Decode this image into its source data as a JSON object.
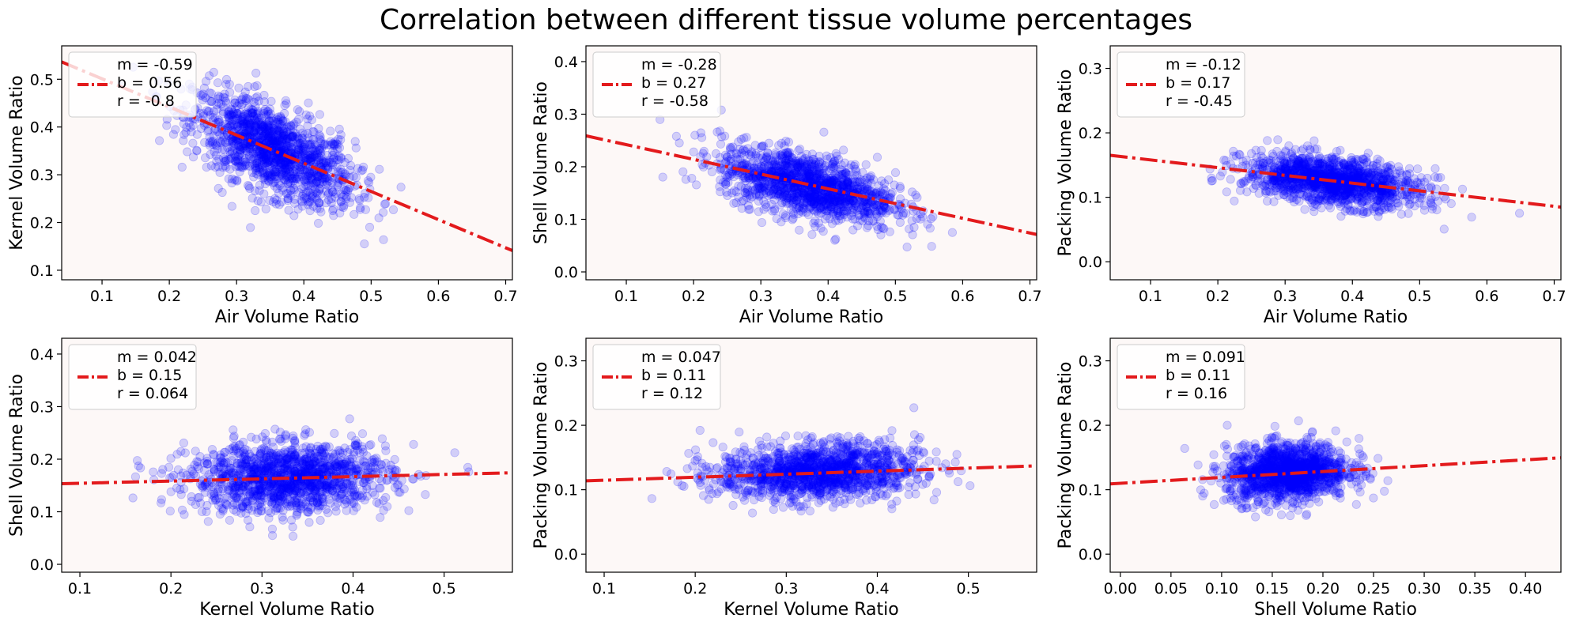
{
  "title": "Correlation between different tissue volume percentages",
  "colors": {
    "points": "#0000ff",
    "fit_line": "#e31a1c",
    "panel_bg": "#fdf8f7",
    "legend_bg": "#ffffff"
  },
  "chart_data": [
    {
      "type": "scatter",
      "xlabel": "Air Volume Ratio",
      "ylabel": "Kernel Volume Ratio",
      "xlim": [
        0.04,
        0.71
      ],
      "ylim": [
        0.08,
        0.57
      ],
      "xticks": [
        "0.1",
        "0.2",
        "0.3",
        "0.4",
        "0.5",
        "0.6",
        "0.7"
      ],
      "yticks": [
        "0.1",
        "0.2",
        "0.3",
        "0.4",
        "0.5"
      ],
      "cloud": {
        "cx": 0.355,
        "cy": 0.35,
        "sx": 0.06,
        "sy": 0.045,
        "slope": -0.59
      },
      "fit": {
        "m": -0.59,
        "b": 0.56
      },
      "legend": [
        "m = -0.59",
        "b = 0.56",
        "r = -0.8"
      ]
    },
    {
      "type": "scatter",
      "xlabel": "Air Volume Ratio",
      "ylabel": "Shell Volume Ratio",
      "xlim": [
        0.04,
        0.71
      ],
      "ylim": [
        -0.015,
        0.43
      ],
      "xticks": [
        "0.1",
        "0.2",
        "0.3",
        "0.4",
        "0.5",
        "0.6",
        "0.7"
      ],
      "yticks": [
        "0.0",
        "0.1",
        "0.2",
        "0.3",
        "0.4"
      ],
      "cloud": {
        "cx": 0.37,
        "cy": 0.165,
        "sx": 0.065,
        "sy": 0.03,
        "slope": -0.28
      },
      "fit": {
        "m": -0.28,
        "b": 0.27
      },
      "legend": [
        "m = -0.28",
        "b = 0.27",
        "r = -0.58"
      ]
    },
    {
      "type": "scatter",
      "xlabel": "Air Volume Ratio",
      "ylabel": "Packing Volume Ratio",
      "xlim": [
        0.04,
        0.71
      ],
      "ylim": [
        -0.028,
        0.335
      ],
      "xticks": [
        "0.1",
        "0.2",
        "0.3",
        "0.4",
        "0.5",
        "0.6",
        "0.7"
      ],
      "yticks": [
        "0.0",
        "0.1",
        "0.2",
        "0.3"
      ],
      "cloud": {
        "cx": 0.37,
        "cy": 0.125,
        "sx": 0.065,
        "sy": 0.018,
        "slope": -0.12
      },
      "fit": {
        "m": -0.12,
        "b": 0.17
      },
      "legend": [
        "m = -0.12",
        "b = 0.17",
        "r = -0.45"
      ]
    },
    {
      "type": "scatter",
      "xlabel": "Kernel Volume Ratio",
      "ylabel": "Shell Volume Ratio",
      "xlim": [
        0.08,
        0.575
      ],
      "ylim": [
        -0.015,
        0.43
      ],
      "xticks": [
        "0.1",
        "0.2",
        "0.3",
        "0.4",
        "0.5"
      ],
      "yticks": [
        "0.0",
        "0.1",
        "0.2",
        "0.3",
        "0.4"
      ],
      "cloud": {
        "cx": 0.33,
        "cy": 0.165,
        "sx": 0.055,
        "sy": 0.033,
        "slope": 0.042
      },
      "fit": {
        "m": 0.042,
        "b": 0.15
      },
      "legend": [
        "m = 0.042",
        "b = 0.15",
        "r = 0.064"
      ]
    },
    {
      "type": "scatter",
      "xlabel": "Kernel Volume Ratio",
      "ylabel": "Packing Volume Ratio",
      "xlim": [
        0.08,
        0.575
      ],
      "ylim": [
        -0.028,
        0.335
      ],
      "xticks": [
        "0.1",
        "0.2",
        "0.3",
        "0.4",
        "0.5"
      ],
      "yticks": [
        "0.0",
        "0.1",
        "0.2",
        "0.3"
      ],
      "cloud": {
        "cx": 0.335,
        "cy": 0.128,
        "sx": 0.055,
        "sy": 0.022,
        "slope": 0.047
      },
      "fit": {
        "m": 0.047,
        "b": 0.11
      },
      "legend": [
        "m = 0.047",
        "b = 0.11",
        "r = 0.12"
      ]
    },
    {
      "type": "scatter",
      "xlabel": "Shell Volume Ratio",
      "ylabel": "Packing Volume Ratio",
      "xlim": [
        -0.01,
        0.435
      ],
      "ylim": [
        -0.028,
        0.335
      ],
      "xticks": [
        "0.00",
        "0.05",
        "0.10",
        "0.15",
        "0.20",
        "0.25",
        "0.30",
        "0.35",
        "0.40"
      ],
      "yticks": [
        "0.0",
        "0.1",
        "0.2",
        "0.3"
      ],
      "cloud": {
        "cx": 0.165,
        "cy": 0.127,
        "sx": 0.03,
        "sy": 0.022,
        "slope": 0.091
      },
      "fit": {
        "m": 0.091,
        "b": 0.11
      },
      "legend": [
        "m = 0.091",
        "b = 0.11",
        "r = 0.16"
      ]
    }
  ]
}
